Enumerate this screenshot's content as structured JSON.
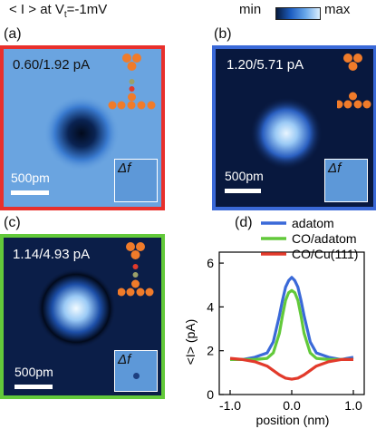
{
  "header": {
    "lead": "< I > at V",
    "sub": "t",
    "tail": "=-1mV"
  },
  "colorbar": {
    "min": "min",
    "max": "max"
  },
  "panels": {
    "a": {
      "label": "(a)",
      "value": "0.60/1.92 pA",
      "scale": "500pm",
      "inset": "Δf",
      "frame_color": "#e8302c"
    },
    "b": {
      "label": "(b)",
      "value": "1.20/5.71 pA",
      "scale": "500pm",
      "inset": "Δf",
      "frame_color": "#3a69d8"
    },
    "c": {
      "label": "(c)",
      "value": "1.14/4.93 pA",
      "scale": "500pm",
      "inset": "Δf",
      "frame_color": "#62c93a"
    },
    "d": {
      "label": "(d)"
    }
  },
  "colors": {
    "tip_atom": "#f07b2a",
    "oxygen": "#e23a2b",
    "carbon": "#9aa06a"
  },
  "chart_data": {
    "type": "line",
    "xlabel": "position (nm)",
    "ylabel": "<I> (pA)",
    "xlim": [
      -1.0,
      1.0
    ],
    "ylim": [
      0,
      6.5
    ],
    "xticks": [
      "-1.0",
      "0.0",
      "1.0"
    ],
    "yticks": [
      "0",
      "2",
      "4",
      "6"
    ],
    "legend_position": "top-right",
    "series": [
      {
        "name": "adatom",
        "color": "#3a69d8",
        "x": [
          -1.0,
          -0.8,
          -0.6,
          -0.4,
          -0.3,
          -0.2,
          -0.15,
          -0.1,
          -0.05,
          0.0,
          0.05,
          0.1,
          0.15,
          0.2,
          0.3,
          0.4,
          0.6,
          0.8,
          1.0
        ],
        "y": [
          1.6,
          1.6,
          1.7,
          1.9,
          2.4,
          3.6,
          4.3,
          4.9,
          5.2,
          5.35,
          5.2,
          4.9,
          4.3,
          3.6,
          2.4,
          1.9,
          1.7,
          1.6,
          1.7
        ]
      },
      {
        "name": "CO/adatom",
        "color": "#62c93a",
        "x": [
          -1.0,
          -0.8,
          -0.6,
          -0.4,
          -0.3,
          -0.2,
          -0.15,
          -0.1,
          -0.05,
          0.0,
          0.05,
          0.1,
          0.15,
          0.2,
          0.3,
          0.4,
          0.6,
          0.8,
          1.0
        ],
        "y": [
          1.6,
          1.6,
          1.6,
          1.65,
          1.9,
          2.8,
          3.6,
          4.3,
          4.65,
          4.75,
          4.65,
          4.3,
          3.6,
          2.8,
          1.9,
          1.65,
          1.6,
          1.6,
          1.6
        ]
      },
      {
        "name": "CO/Cu(111)",
        "color": "#e23a2b",
        "x": [
          -1.0,
          -0.8,
          -0.6,
          -0.4,
          -0.3,
          -0.2,
          -0.1,
          0.0,
          0.1,
          0.2,
          0.3,
          0.4,
          0.6,
          0.8,
          1.0
        ],
        "y": [
          1.65,
          1.6,
          1.5,
          1.3,
          1.1,
          0.9,
          0.75,
          0.7,
          0.75,
          0.9,
          1.1,
          1.3,
          1.5,
          1.6,
          1.6
        ]
      }
    ]
  }
}
